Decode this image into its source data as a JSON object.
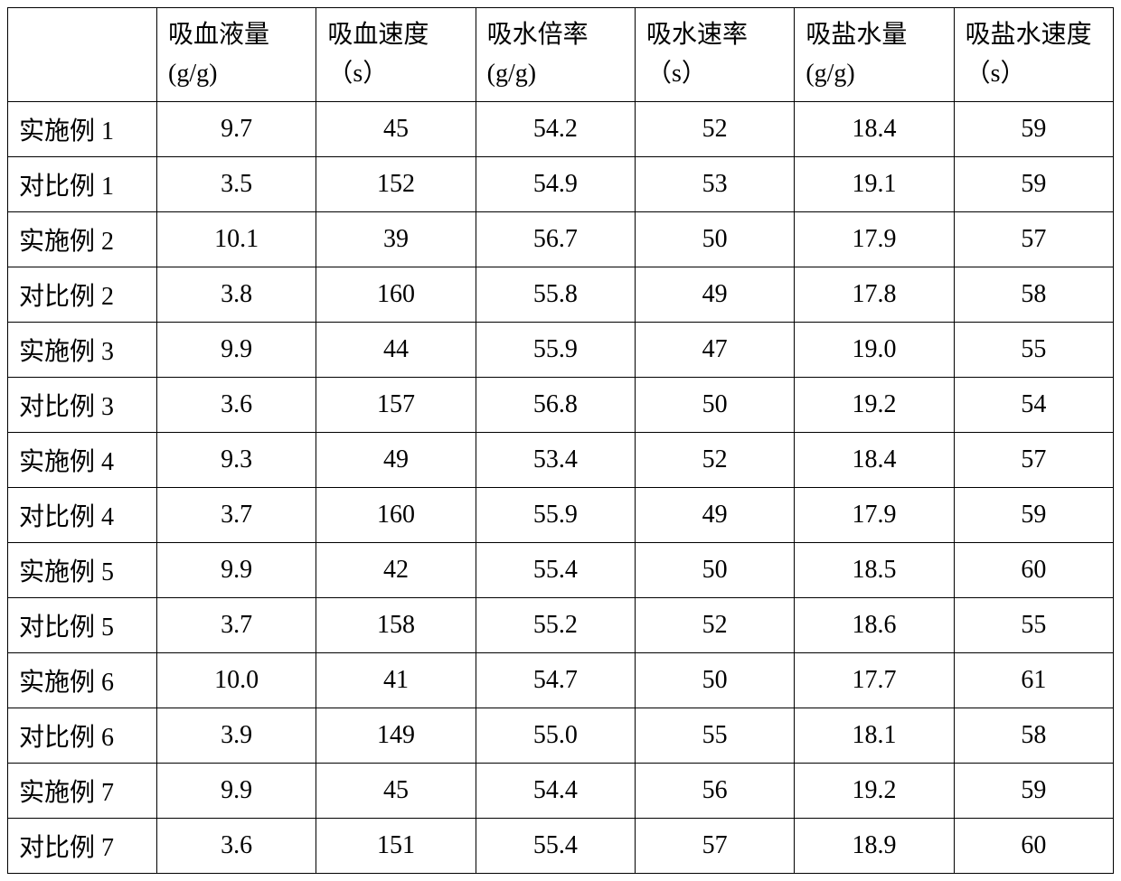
{
  "table": {
    "columns": [
      "",
      "吸血液量(g/g)",
      "吸血速度（s）",
      "吸水倍率(g/g)",
      "吸水速率（s）",
      "吸盐水量(g/g)",
      "吸盐水速度（s）"
    ],
    "rows": [
      [
        "实施例 1",
        "9.7",
        "45",
        "54.2",
        "52",
        "18.4",
        "59"
      ],
      [
        "对比例 1",
        "3.5",
        "152",
        "54.9",
        "53",
        "19.1",
        "59"
      ],
      [
        "实施例 2",
        "10.1",
        "39",
        "56.7",
        "50",
        "17.9",
        "57"
      ],
      [
        "对比例 2",
        "3.8",
        "160",
        "55.8",
        "49",
        "17.8",
        "58"
      ],
      [
        "实施例 3",
        "9.9",
        "44",
        "55.9",
        "47",
        "19.0",
        "55"
      ],
      [
        "对比例 3",
        "3.6",
        "157",
        "56.8",
        "50",
        "19.2",
        "54"
      ],
      [
        "实施例 4",
        "9.3",
        "49",
        "53.4",
        "52",
        "18.4",
        "57"
      ],
      [
        "对比例 4",
        "3.7",
        "160",
        "55.9",
        "49",
        "17.9",
        "59"
      ],
      [
        "实施例 5",
        "9.9",
        "42",
        "55.4",
        "50",
        "18.5",
        "60"
      ],
      [
        "对比例 5",
        "3.7",
        "158",
        "55.2",
        "52",
        "18.6",
        "55"
      ],
      [
        "实施例 6",
        "10.0",
        "41",
        "54.7",
        "50",
        "17.7",
        "61"
      ],
      [
        "对比例 6",
        "3.9",
        "149",
        "55.0",
        "55",
        "18.1",
        "58"
      ],
      [
        "实施例 7",
        "9.9",
        "45",
        "54.4",
        "56",
        "19.2",
        "59"
      ],
      [
        "对比例 7",
        "3.6",
        "151",
        "55.4",
        "57",
        "18.9",
        "60"
      ]
    ],
    "column_widths": [
      "165px",
      "179px",
      "179px",
      "179px",
      "179px",
      "179px",
      "179px"
    ],
    "font_size": 28,
    "border_color": "#000000",
    "background_color": "#ffffff",
    "text_color": "#000000"
  }
}
